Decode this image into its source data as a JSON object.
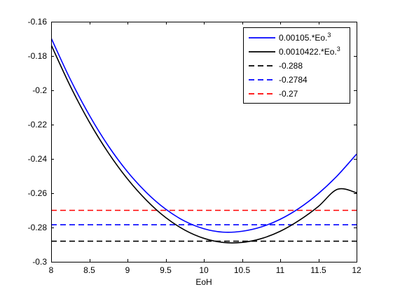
{
  "chart_data": {
    "type": "line",
    "title": "",
    "xlabel": "EoH",
    "ylabel": "",
    "xlim": [
      8,
      12
    ],
    "ylim": [
      -0.3,
      -0.16
    ],
    "x_ticks": [
      8,
      8.5,
      9,
      9.5,
      10,
      10.5,
      11,
      11.5,
      12
    ],
    "x_tick_labels": [
      "8",
      "8.5",
      "9",
      "9.5",
      "10",
      "10.5",
      "11",
      "11.5",
      "12"
    ],
    "y_ticks": [
      -0.3,
      -0.28,
      -0.26,
      -0.24,
      -0.22,
      -0.2,
      -0.18,
      -0.16
    ],
    "y_tick_labels": [
      "-0.3",
      "-0.28",
      "-0.26",
      "-0.24",
      "-0.22",
      "-0.2",
      "-0.18",
      "-0.16"
    ],
    "grid": false,
    "legend_position": "top-right",
    "series": [
      {
        "name": "0.00105.*Eo.^3",
        "legend_base": "0.00105.*Eo.",
        "legend_sup": "3",
        "color": "#0000ff",
        "style": "solid",
        "x": [
          8,
          8.25,
          8.5,
          8.75,
          9,
          9.25,
          9.5,
          9.75,
          10,
          10.25,
          10.5,
          10.75,
          11,
          11.25,
          11.5,
          11.75,
          12
        ],
        "y": [
          -0.1695,
          -0.1935,
          -0.2145,
          -0.2325,
          -0.2475,
          -0.2597,
          -0.2693,
          -0.2763,
          -0.2807,
          -0.2827,
          -0.2822,
          -0.2797,
          -0.2752,
          -0.2687,
          -0.2602,
          -0.2497,
          -0.2372
        ]
      },
      {
        "name": "0.0010422.*Eo.^3",
        "legend_base": "0.0010422.*Eo.",
        "legend_sup": "3",
        "color": "#000000",
        "style": "solid",
        "x": [
          8,
          8.25,
          8.5,
          8.75,
          9,
          9.25,
          9.5,
          9.75,
          10,
          10.25,
          10.5,
          10.75,
          11,
          11.25,
          11.5,
          11.75,
          12
        ],
        "y": [
          -0.1735,
          -0.1975,
          -0.2185,
          -0.2365,
          -0.2517,
          -0.2642,
          -0.2742,
          -0.2815,
          -0.2863,
          -0.2887,
          -0.2887,
          -0.2865,
          -0.2822,
          -0.2758,
          -0.2677,
          -0.2577,
          -0.2597
        ]
      },
      {
        "name": "-0.288",
        "legend_base": "-0.288",
        "legend_sup": "",
        "color": "#000000",
        "style": "dashed",
        "x": [
          8,
          12
        ],
        "y": [
          -0.288,
          -0.288
        ]
      },
      {
        "name": "-0.2784",
        "legend_base": "-0.2784",
        "legend_sup": "",
        "color": "#0000ff",
        "style": "dashed",
        "x": [
          8,
          12
        ],
        "y": [
          -0.2784,
          -0.2784
        ]
      },
      {
        "name": "-0.27",
        "legend_base": "-0.27",
        "legend_sup": "",
        "color": "#ff0000",
        "style": "dashed",
        "x": [
          8,
          12
        ],
        "y": [
          -0.27,
          -0.27
        ]
      }
    ]
  }
}
